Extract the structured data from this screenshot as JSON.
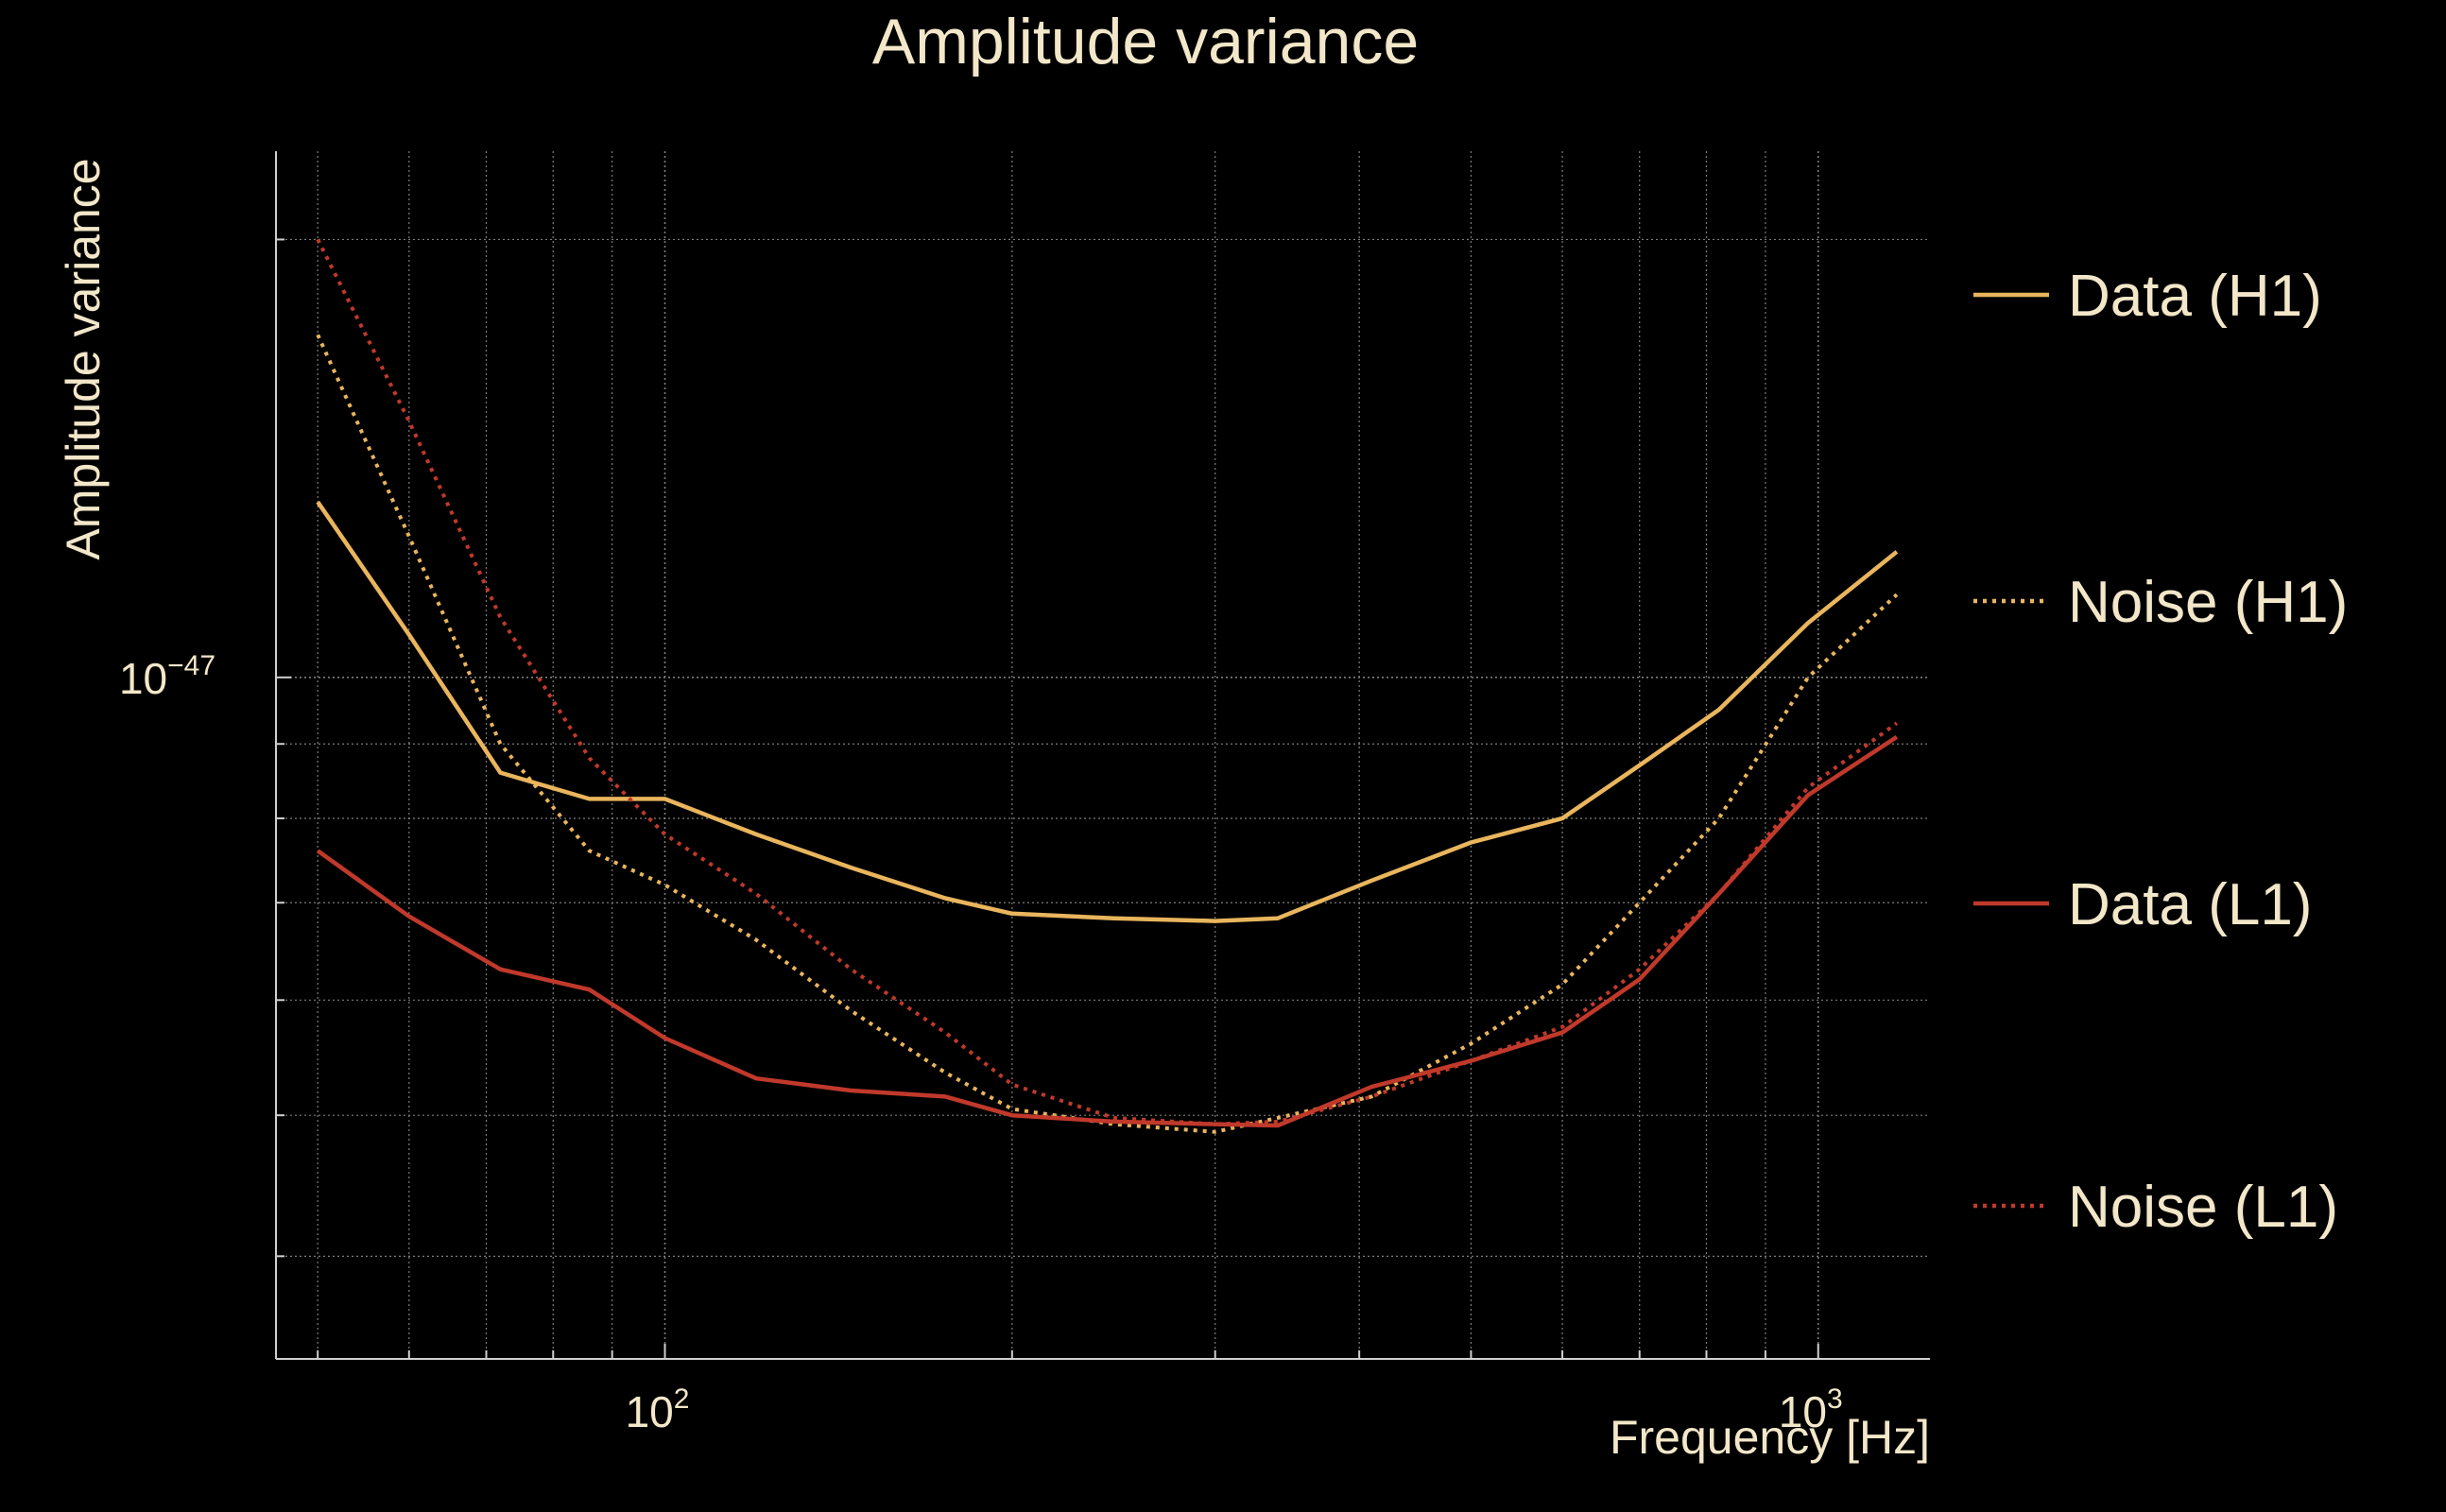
{
  "chart_data": {
    "type": "line",
    "title": "Amplitude variance",
    "xlabel": "Frequency [Hz]",
    "ylabel": "Amplitude variance",
    "x_scale": "log",
    "y_scale": "log",
    "xlim": [
      46,
      1250
    ],
    "ylim": [
      3.4e-48,
      2.3e-47
    ],
    "x_ticks": [
      {
        "value": 100,
        "base": "10",
        "exp": "2"
      },
      {
        "value": 1000,
        "base": "10",
        "exp": "3"
      }
    ],
    "y_ticks": [
      {
        "value": 1e-47,
        "base": "10",
        "exp": "−47"
      }
    ],
    "grid": true,
    "legend_position": "right",
    "colors": {
      "background": "#000000",
      "text": "#f3e7c9",
      "grid": "#8a8a8a",
      "h1": "#e9b55d",
      "l1": "#c0392b"
    },
    "series": [
      {
        "name": "Data (H1)",
        "style": "solid",
        "color": "#e9b55d",
        "x": [
          50,
          60,
          72,
          86,
          100,
          120,
          145,
          175,
          200,
          245,
          300,
          340,
          410,
          500,
          600,
          700,
          820,
          980,
          1170
        ],
        "y": [
          1.32e-47,
          1.07e-47,
          8.6e-48,
          8.25e-48,
          8.25e-48,
          7.8e-48,
          7.4e-48,
          7.05e-48,
          6.88e-48,
          6.83e-48,
          6.8e-48,
          6.83e-48,
          7.25e-48,
          7.7e-48,
          8e-48,
          8.7e-48,
          9.5e-48,
          1.09e-47,
          1.22e-47
        ]
      },
      {
        "name": "Noise (H1)",
        "style": "dotted",
        "color": "#e9b55d",
        "x": [
          50,
          60,
          72,
          86,
          100,
          120,
          145,
          175,
          200,
          245,
          300,
          340,
          410,
          500,
          600,
          700,
          820,
          980,
          1170
        ],
        "y": [
          1.72e-47,
          1.25e-47,
          9e-48,
          7.6e-48,
          7.2e-48,
          6.6e-48,
          5.9e-48,
          5.35e-48,
          5.05e-48,
          4.93e-48,
          4.87e-48,
          4.98e-48,
          5.15e-48,
          5.6e-48,
          6.15e-48,
          7e-48,
          8e-48,
          1e-47,
          1.14e-47
        ]
      },
      {
        "name": "Data (L1)",
        "style": "solid",
        "color": "#c0392b",
        "x": [
          50,
          60,
          72,
          86,
          100,
          120,
          145,
          175,
          200,
          245,
          300,
          340,
          410,
          500,
          600,
          700,
          820,
          980,
          1170
        ],
        "y": [
          7.6e-48,
          6.85e-48,
          6.3e-48,
          6.1e-48,
          5.65e-48,
          5.3e-48,
          5.2e-48,
          5.15e-48,
          5e-48,
          4.95e-48,
          4.93e-48,
          4.92e-48,
          5.23e-48,
          5.45e-48,
          5.7e-48,
          6.2e-48,
          7.1e-48,
          8.3e-48,
          9.1e-48
        ]
      },
      {
        "name": "Noise (L1)",
        "style": "dotted",
        "color": "#c0392b",
        "x": [
          50,
          60,
          72,
          86,
          100,
          120,
          145,
          175,
          200,
          245,
          300,
          340,
          410,
          500,
          600,
          700,
          820,
          980,
          1170
        ],
        "y": [
          2e-47,
          1.5e-47,
          1.1e-47,
          8.8e-48,
          7.8e-48,
          7.1e-48,
          6.3e-48,
          5.7e-48,
          5.25e-48,
          4.98e-48,
          4.93e-48,
          4.95e-48,
          5.15e-48,
          5.45e-48,
          5.75e-48,
          6.3e-48,
          7.1e-48,
          8.4e-48,
          9.3e-48
        ]
      }
    ]
  }
}
